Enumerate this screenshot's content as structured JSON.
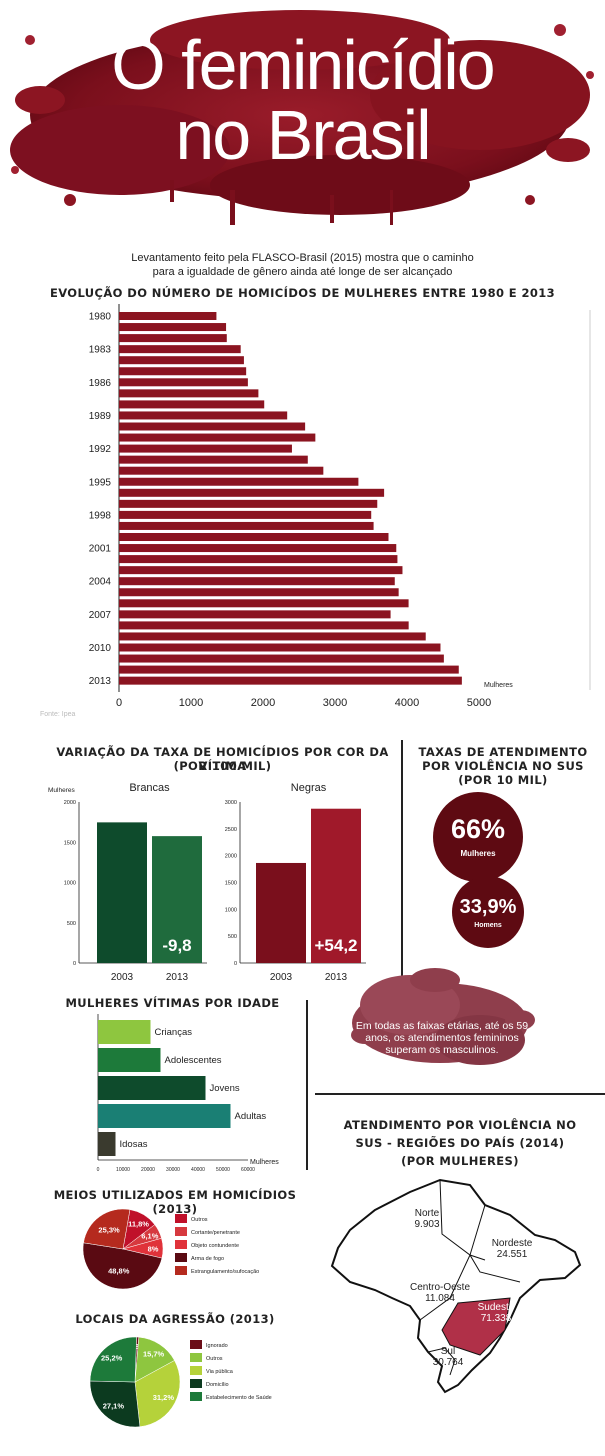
{
  "header": {
    "title_line1": "O feminicídio",
    "title_line2": "no Brasil",
    "intro_line1": "Levantamento feito pela FLASCO-Brasil (2015) mostra que o caminho",
    "intro_line2": "para a igualdade de gênero ainda até longe de ser alcançado"
  },
  "colors": {
    "wine": "#8b1420",
    "dark_wine": "#5a0a12",
    "green_dark": "#0e4b2c",
    "green": "#1d7a3a",
    "lime": "#8ec63f",
    "teal": "#1a7f74"
  },
  "evolution": {
    "title": "EVOLUÇÃO DO NÚMERO DE HOMICÍDOS DE MULHERES ENTRE 1980 E 2013",
    "unit_label": "Mulheres",
    "source_note": "Fonte: Ipea",
    "chart_data": {
      "type": "bar",
      "orientation": "horizontal",
      "years": [
        1980,
        1981,
        1982,
        1983,
        1984,
        1985,
        1986,
        1987,
        1988,
        1989,
        1990,
        1991,
        1992,
        1993,
        1994,
        1995,
        1996,
        1997,
        1998,
        1999,
        2000,
        2001,
        2002,
        2003,
        2004,
        2005,
        2006,
        2007,
        2008,
        2009,
        2010,
        2011,
        2012,
        2013
      ],
      "year_labels": [
        "1980",
        "",
        "",
        "1983",
        "",
        "",
        "1986",
        "",
        "",
        "1989",
        "",
        "",
        "1992",
        "",
        "",
        "1995",
        "",
        "",
        "1998",
        "",
        "",
        "2001",
        "",
        "",
        "2004",
        "",
        "",
        "2007",
        "",
        "",
        "2010",
        "",
        "",
        "2013"
      ],
      "values": [
        1353,
        1487,
        1497,
        1690,
        1735,
        1766,
        1790,
        1936,
        2017,
        2336,
        2585,
        2727,
        2402,
        2622,
        2838,
        3325,
        3682,
        3587,
        3503,
        3536,
        3743,
        3851,
        3867,
        3937,
        3830,
        3884,
        4022,
        3772,
        4023,
        4260,
        4465,
        4512,
        4719,
        4762
      ],
      "x_ticks": [
        "0",
        "1000",
        "2000",
        "3000",
        "4000",
        "5000"
      ],
      "xlim": [
        0,
        5000
      ]
    }
  },
  "race": {
    "title_line1": "VARIAÇÃO DA TAXA DE HOMICÍDIOS POR COR DA VÍTIMA",
    "title_line2": "(POR 100 MIL)",
    "y_label": "Mulheres",
    "chart_data": [
      {
        "type": "bar",
        "title": "Brancas",
        "categories": [
          "2003",
          "2013"
        ],
        "values": [
          1747,
          1576
        ],
        "change_label": "-9,8",
        "y_ticks": [
          "2000",
          "1500",
          "1000",
          "500",
          "0"
        ],
        "ylim": [
          0,
          2000
        ]
      },
      {
        "type": "bar",
        "title": "Negras",
        "categories": [
          "2003",
          "2013"
        ],
        "values": [
          1864,
          2875
        ],
        "change_label": "+54,2",
        "y_ticks": [
          "3000",
          "2500",
          "2000",
          "1500",
          "1000",
          "500",
          "0"
        ],
        "ylim": [
          0,
          3000
        ]
      }
    ]
  },
  "sus": {
    "title_line1": "TAXAS DE ATENDIMENTO",
    "title_line2": "POR VIOLÊNCIA NO SUS",
    "title_line3": "(POR 10 MIL)",
    "women_value": "66%",
    "women_label": "Mulheres",
    "men_value": "33,9%",
    "men_label": "Homens",
    "note": "Em todas as faixas etárias, até os 59 anos, os atendimentos femininos superam os masculinos."
  },
  "age": {
    "title": "MULHERES VÍTIMAS POR IDADE",
    "unit_label": "Mulheres",
    "chart_data": {
      "type": "bar",
      "orientation": "horizontal",
      "categories": [
        "Crianças",
        "Adolescentes",
        "Jovens",
        "Adultas",
        "Idosas"
      ],
      "values": [
        21000,
        25000,
        43000,
        53000,
        7000
      ],
      "x_ticks": [
        "0",
        "10000",
        "20000",
        "30000",
        "40000",
        "50000",
        "60000"
      ],
      "xlim": [
        0,
        60000
      ]
    }
  },
  "means": {
    "title": "MEIOS UTILIZADOS EM HOMICÍDIOS (2013)",
    "chart_data": {
      "type": "pie",
      "labels": [
        "Outros",
        "Cortante/penetrante",
        "Objeto contundente",
        "Arma de fogo",
        "Estrangulamento/sufocação"
      ],
      "values": [
        11.8,
        6.1,
        8,
        48.8,
        25.3
      ],
      "value_labels": [
        "11,8%",
        "6,1%",
        "8%",
        "48,8%",
        "25,3%"
      ]
    }
  },
  "places": {
    "title": "LOCAIS DA AGRESSÃO (2013)",
    "chart_data": {
      "type": "pie",
      "labels": [
        "Ignorado",
        "Outros",
        "Via pública",
        "Domicílio",
        "Estabelecimento de Saúde"
      ],
      "values": [
        0.8,
        15.7,
        31.2,
        27.1,
        25.2
      ],
      "value_labels": [
        "(0,8%)",
        "15,7%",
        "31,2%",
        "27,1%",
        "25,2%"
      ]
    }
  },
  "regions": {
    "title_line1": "ATENDIMENTO POR VIOLÊNCIA NO",
    "title_line2": "SUS - REGIÕES DO PAÍS (2014)",
    "title_line3": "(POR MULHERES)",
    "items": [
      {
        "name": "Norte",
        "value": "9.903"
      },
      {
        "name": "Nordeste",
        "value": "24.551"
      },
      {
        "name": "Centro-Oeste",
        "value": "11.084"
      },
      {
        "name": "Sudeste",
        "value": "71.338"
      },
      {
        "name": "Sul",
        "value": "30.764"
      }
    ]
  }
}
